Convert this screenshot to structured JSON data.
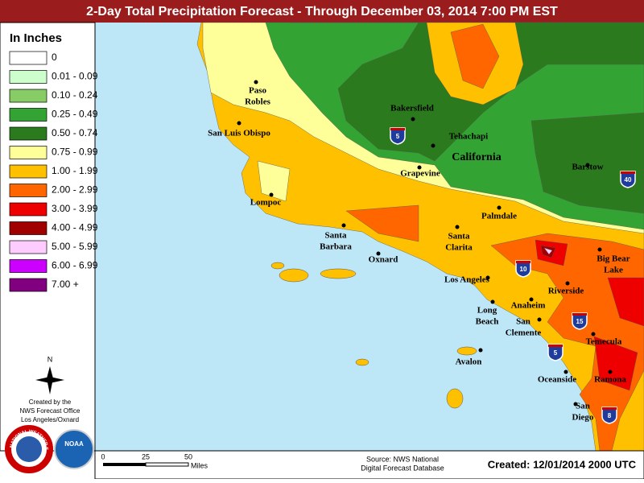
{
  "header": {
    "title": "2-Day Total Precipitation Forecast - Through December 03, 2014 7:00 PM EST"
  },
  "legend": {
    "title": "In Inches",
    "items": [
      {
        "label": "0",
        "color": "#ffffff"
      },
      {
        "label": "0.01 - 0.09",
        "color": "#ccffcc"
      },
      {
        "label": "0.10 - 0.24",
        "color": "#88cc66"
      },
      {
        "label": "0.25 - 0.49",
        "color": "#33a333"
      },
      {
        "label": "0.50 - 0.74",
        "color": "#2b7a1e"
      },
      {
        "label": "0.75 - 0.99",
        "color": "#ffff99"
      },
      {
        "label": "1.00 - 1.99",
        "color": "#ffc000"
      },
      {
        "label": "2.00 - 2.99",
        "color": "#ff6600"
      },
      {
        "label": "3.00 - 3.99",
        "color": "#ee0000"
      },
      {
        "label": "4.00 - 4.99",
        "color": "#a00000"
      },
      {
        "label": "5.00 - 5.99",
        "color": "#ffccff"
      },
      {
        "label": "6.00 - 6.99",
        "color": "#cc00ff"
      },
      {
        "label": "7.00 +",
        "color": "#80007f"
      }
    ]
  },
  "compass": {
    "label": "N"
  },
  "credits": {
    "lines": [
      "Created by the",
      "NWS Forecast Office",
      "Los Angeles/Oxnard"
    ]
  },
  "logos": {
    "nws": "NATIONAL WEATHER SERVICE",
    "noaa": "NOAA"
  },
  "map": {
    "state": "California",
    "places": [
      {
        "lines": [
          "Paso",
          "Robles"
        ]
      },
      {
        "lines": [
          "San Luis Obispo"
        ]
      },
      {
        "lines": [
          "Bakersfield"
        ]
      },
      {
        "lines": [
          "Tehachapi"
        ]
      },
      {
        "lines": [
          "Grapevine"
        ]
      },
      {
        "lines": [
          "Barstow"
        ]
      },
      {
        "lines": [
          "Lompoc"
        ]
      },
      {
        "lines": [
          "Palmdale"
        ]
      },
      {
        "lines": [
          "Santa",
          "Barbara"
        ]
      },
      {
        "lines": [
          "Santa",
          "Clarita"
        ]
      },
      {
        "lines": [
          "Oxnard"
        ]
      },
      {
        "lines": [
          "Los Angeles"
        ]
      },
      {
        "lines": [
          "Big Bear",
          "Lake"
        ]
      },
      {
        "lines": [
          "Riverside"
        ]
      },
      {
        "lines": [
          "Anaheim"
        ]
      },
      {
        "lines": [
          "Long",
          "Beach"
        ]
      },
      {
        "lines": [
          "San",
          "Clemente"
        ]
      },
      {
        "lines": [
          "Temecula"
        ]
      },
      {
        "lines": [
          "Avalon"
        ]
      },
      {
        "lines": [
          "Oceanside"
        ]
      },
      {
        "lines": [
          "Ramona"
        ]
      },
      {
        "lines": [
          "San",
          "Diego"
        ]
      }
    ],
    "highways": [
      "5",
      "40",
      "10",
      "15",
      "5",
      "8"
    ]
  },
  "scale": {
    "labels": [
      "0",
      "25",
      "50"
    ],
    "unit": "Miles"
  },
  "footer": {
    "source": [
      "Source: NWS National",
      "Digital Forecast Database"
    ],
    "created": "Created: 12/01/2014 2000 UTC"
  }
}
